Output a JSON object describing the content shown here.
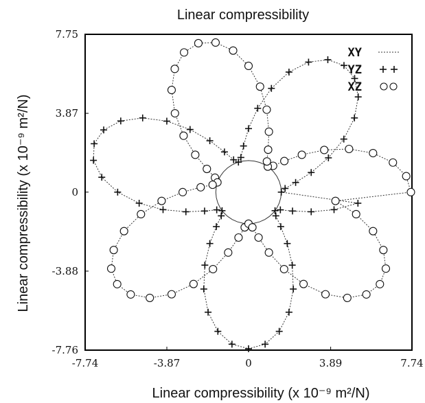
{
  "chart_data": {
    "type": "scatter",
    "title": "Linear compressibility",
    "xlabel": "Linear compressibility (x 10⁻⁹ m²/N)",
    "ylabel": "Linear compressibility (x 10⁻⁹ m²/N)",
    "xlim": [
      -7.74,
      7.74
    ],
    "ylim": [
      -7.76,
      7.75
    ],
    "x_ticks": [
      {
        "value": -7.74,
        "label": "-7.74"
      },
      {
        "value": -3.87,
        "label": "-3.87"
      },
      {
        "value": 0,
        "label": "0"
      },
      {
        "value": 3.89,
        "label": "3.89"
      },
      {
        "value": 7.74,
        "label": "7.74"
      }
    ],
    "y_ticks": [
      {
        "value": 7.75,
        "label": "7.75"
      },
      {
        "value": 3.87,
        "label": "3.87"
      },
      {
        "value": 0,
        "label": "0"
      },
      {
        "value": -3.88,
        "label": "-3.88"
      },
      {
        "value": -7.76,
        "label": "-7.76"
      }
    ],
    "grid": false,
    "legend_position": "top-right",
    "series": [
      {
        "name": "XY",
        "marker": "dotted-line",
        "shape": "polar",
        "theta_deg": [
          0,
          10,
          20,
          30,
          40,
          50,
          60,
          70,
          80,
          90,
          100,
          110,
          120,
          130,
          140,
          150,
          160,
          170,
          180,
          190,
          200,
          210,
          220,
          230,
          240,
          250,
          260,
          270,
          280,
          290,
          300,
          310,
          320,
          330,
          340,
          350
        ],
        "r": [
          1.55,
          1.55,
          1.55,
          1.55,
          1.55,
          1.55,
          1.55,
          1.55,
          1.55,
          1.55,
          1.55,
          1.55,
          1.55,
          1.55,
          1.55,
          1.55,
          1.55,
          1.55,
          1.55,
          1.55,
          1.55,
          1.55,
          1.55,
          1.55,
          1.55,
          1.55,
          1.55,
          1.55,
          1.55,
          1.55,
          1.55,
          1.55,
          1.55,
          1.55,
          1.55,
          1.55
        ]
      },
      {
        "name": "YZ",
        "marker": "plus",
        "shape": "polar",
        "theta_deg": [
          0,
          6,
          12,
          18,
          24,
          30,
          36,
          42,
          48,
          54,
          60,
          66,
          72,
          78,
          84,
          90,
          96,
          102,
          108,
          114,
          120,
          126,
          132,
          138,
          144,
          150,
          156,
          162,
          168,
          174,
          180,
          186,
          192,
          198,
          204,
          210,
          216,
          222,
          228,
          234,
          240,
          246,
          252,
          258,
          264,
          270,
          276,
          282,
          288,
          294,
          300,
          306,
          312,
          318,
          324,
          330,
          336,
          342,
          348,
          354
        ],
        "r": [
          1.55,
          1.74,
          2.28,
          3.12,
          4.14,
          5.21,
          6.2,
          6.99,
          7.51,
          7.69,
          7.51,
          6.99,
          6.2,
          5.21,
          4.14,
          3.12,
          2.28,
          1.74,
          1.55,
          1.74,
          2.28,
          3.12,
          4.14,
          5.21,
          6.2,
          6.99,
          7.51,
          7.69,
          7.51,
          6.99,
          6.2,
          5.21,
          4.14,
          3.12,
          2.28,
          1.74,
          1.55,
          1.74,
          2.28,
          3.12,
          4.14,
          5.21,
          6.2,
          6.99,
          7.51,
          7.69,
          7.51,
          6.99,
          6.2,
          5.21,
          4.14,
          3.12,
          2.28,
          1.74,
          1.55,
          1.74,
          2.28,
          3.12,
          4.14,
          5.21
        ]
      },
      {
        "name": "XZ",
        "marker": "circle",
        "shape": "polar",
        "theta_deg": [
          0,
          6,
          12,
          18,
          24,
          30,
          36,
          42,
          48,
          54,
          60,
          66,
          72,
          78,
          84,
          90,
          96,
          102,
          108,
          114,
          120,
          126,
          132,
          138,
          144,
          150,
          156,
          162,
          168,
          174,
          180,
          186,
          192,
          198,
          204,
          210,
          216,
          222,
          228,
          234,
          240,
          246,
          252,
          258,
          264,
          270,
          276,
          282,
          288,
          294,
          300,
          306,
          312,
          318,
          324,
          330,
          336,
          342,
          348,
          354
        ],
        "r": [
          7.69,
          7.51,
          6.99,
          6.2,
          5.21,
          4.14,
          3.12,
          2.28,
          1.74,
          1.55,
          1.74,
          2.28,
          3.12,
          4.14,
          5.21,
          6.2,
          6.99,
          7.51,
          7.69,
          7.51,
          6.99,
          6.2,
          5.21,
          4.14,
          3.12,
          2.28,
          1.74,
          1.55,
          1.74,
          2.28,
          3.12,
          4.14,
          5.21,
          6.2,
          6.99,
          7.51,
          7.69,
          7.51,
          6.99,
          6.2,
          5.21,
          4.14,
          3.12,
          2.28,
          1.74,
          1.55,
          1.74,
          2.28,
          3.12,
          4.14,
          5.21,
          6.2,
          6.99,
          7.51,
          7.69,
          7.51,
          6.99,
          6.2,
          5.21,
          4.14
        ]
      }
    ]
  },
  "legend": [
    {
      "label": "XY",
      "symbol": "dotted-line"
    },
    {
      "label": "YZ",
      "symbol": "plus"
    },
    {
      "label": "XZ",
      "symbol": "circle"
    }
  ]
}
